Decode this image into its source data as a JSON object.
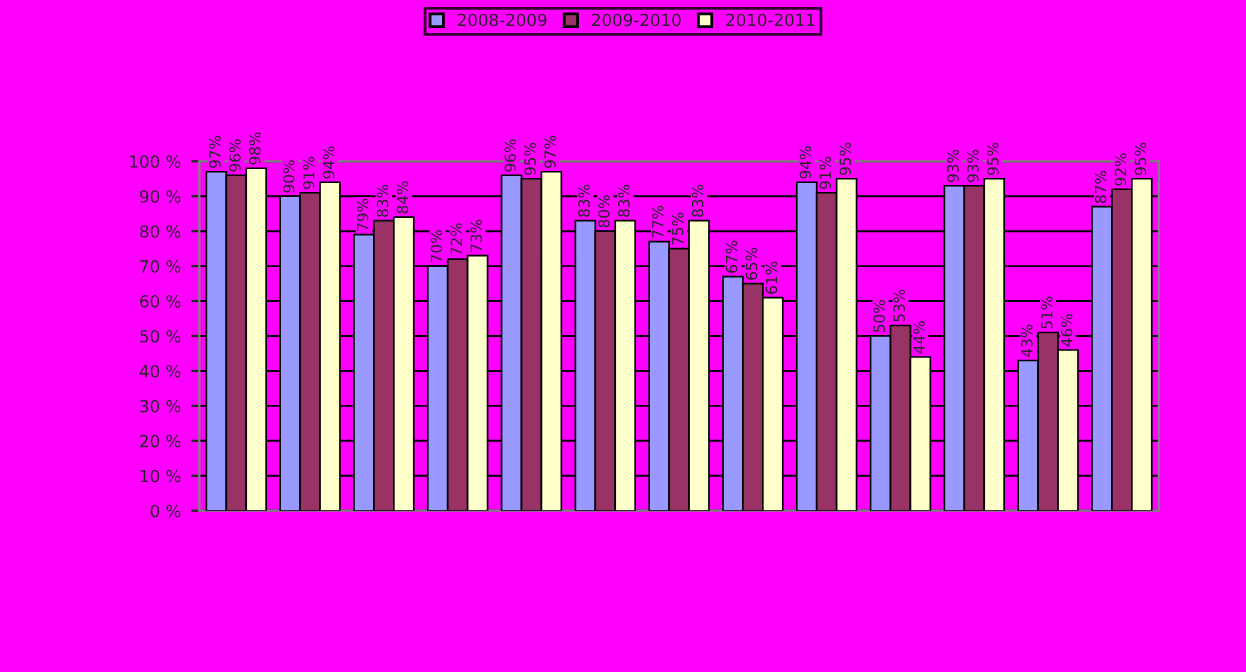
{
  "chart_data": {
    "type": "bar",
    "categories": [
      null,
      null,
      null,
      null,
      null,
      null,
      null,
      null,
      null,
      null,
      null,
      null,
      null
    ],
    "series": [
      {
        "name": "2008-2009",
        "color": "#9999ff",
        "values": [
          97,
          90,
          79,
          70,
          96,
          83,
          77,
          67,
          94,
          50,
          93,
          43,
          87
        ],
        "value_labels": [
          "97%",
          "90%",
          "79%",
          "70%",
          "96%",
          "83%",
          "77%",
          "67%",
          "94%",
          "50%",
          "93%",
          "43%",
          "87%"
        ]
      },
      {
        "name": "2009-2010",
        "color": "#993366",
        "values": [
          96,
          91,
          83,
          72,
          95,
          80,
          75,
          65,
          91,
          53,
          93,
          51,
          92
        ],
        "value_labels": [
          "96%",
          "91%",
          "83%",
          "72%",
          "95%",
          "80%",
          "75%",
          "65%",
          "91%",
          "53%",
          "93%",
          "51%",
          "92%"
        ]
      },
      {
        "name": "2010-2011",
        "color": "#ffffcc",
        "values": [
          98,
          94,
          84,
          73,
          97,
          83,
          83,
          61,
          95,
          44,
          95,
          46,
          95
        ],
        "value_labels": [
          "98%",
          "94%",
          "84%",
          "73%",
          "97%",
          "83%",
          "83%",
          "61%",
          "95%",
          "44%",
          "95%",
          "46%",
          "95%"
        ]
      }
    ],
    "ylim": [
      0,
      100
    ],
    "yticks": [
      {
        "value": 0,
        "label": "0 %"
      },
      {
        "value": 10,
        "label": "10 %"
      },
      {
        "value": 20,
        "label": "20 %"
      },
      {
        "value": 30,
        "label": "30 %"
      },
      {
        "value": 40,
        "label": "40 %"
      },
      {
        "value": 50,
        "label": "50 %"
      },
      {
        "value": 60,
        "label": "60 %"
      },
      {
        "value": 70,
        "label": "70 %"
      },
      {
        "value": 80,
        "label": "80 %"
      },
      {
        "value": 90,
        "label": "90 %"
      },
      {
        "value": 100,
        "label": "100 %"
      }
    ],
    "grid": "y",
    "legend": "top"
  }
}
